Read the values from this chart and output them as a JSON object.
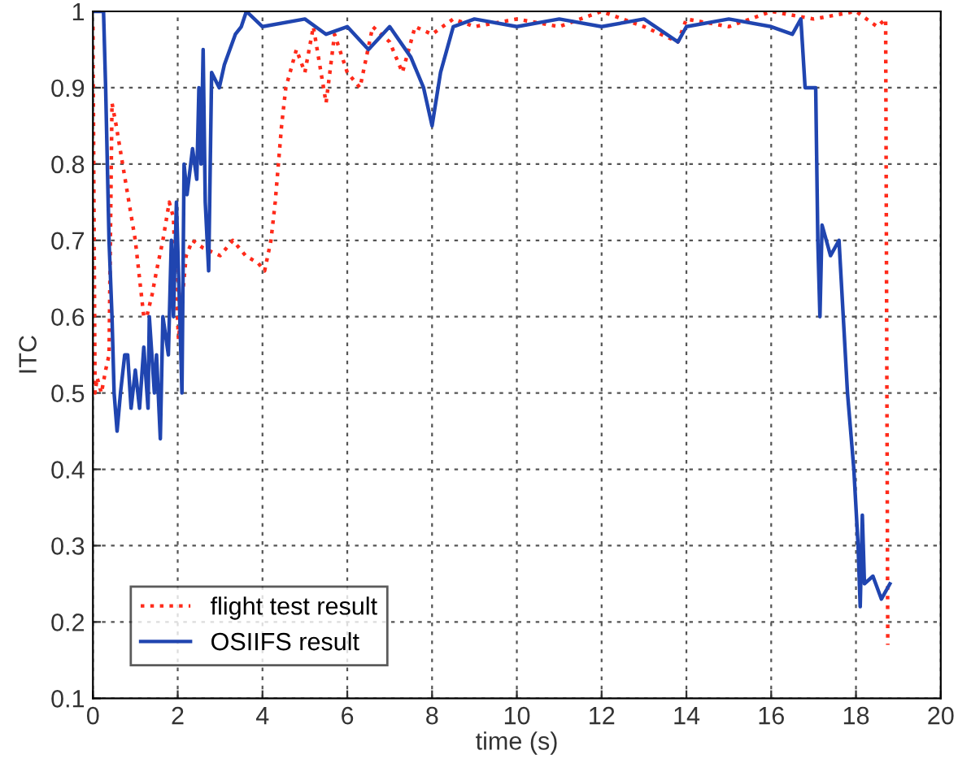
{
  "chart_data": {
    "type": "line",
    "xlabel": "time (s)",
    "ylabel": "ITC",
    "xlim": [
      0,
      20
    ],
    "ylim": [
      0.1,
      1
    ],
    "xticks": [
      0,
      2,
      4,
      6,
      8,
      10,
      12,
      14,
      16,
      18,
      20
    ],
    "yticks": [
      0.1,
      0.2,
      0.3,
      0.4,
      0.5,
      0.6,
      0.7,
      0.8,
      0.9,
      1
    ],
    "grid": true,
    "legend": "bottom left",
    "series": [
      {
        "name": "flight test result",
        "color": "#ff2a1a",
        "line_style": "dotted",
        "x": [
          0,
          0.05,
          0.1,
          0.2,
          0.3,
          0.38,
          0.45,
          0.55,
          0.7,
          0.85,
          1.0,
          1.1,
          1.2,
          1.27,
          1.4,
          1.5,
          1.65,
          1.8,
          1.9,
          1.95,
          2.02,
          2.2,
          2.35,
          2.6,
          3.0,
          3.3,
          3.6,
          3.9,
          4.05,
          4.2,
          4.3,
          4.45,
          4.55,
          4.8,
          5.0,
          5.2,
          5.5,
          5.7,
          6.0,
          6.3,
          6.6,
          7.0,
          7.3,
          7.6,
          8.0,
          8.5,
          9.0,
          10,
          11,
          12,
          13,
          13.8,
          14,
          15,
          16,
          17,
          18,
          18.5,
          18.7,
          18.75
        ],
        "values": [
          0.98,
          0.5,
          0.52,
          0.5,
          0.53,
          0.55,
          0.88,
          0.85,
          0.8,
          0.75,
          0.7,
          0.65,
          0.6,
          0.6,
          0.63,
          0.66,
          0.7,
          0.75,
          0.73,
          0.65,
          0.57,
          0.68,
          0.7,
          0.69,
          0.68,
          0.7,
          0.68,
          0.67,
          0.66,
          0.7,
          0.75,
          0.85,
          0.9,
          0.95,
          0.92,
          0.98,
          0.88,
          0.97,
          0.92,
          0.9,
          0.98,
          0.96,
          0.92,
          0.98,
          0.97,
          0.99,
          0.98,
          0.99,
          0.98,
          1.0,
          0.98,
          0.96,
          0.99,
          0.98,
          1.0,
          0.99,
          1.0,
          0.98,
          0.99,
          0.17
        ]
      },
      {
        "name": "OSIIFS result",
        "color": "#2045b0",
        "line_style": "solid",
        "x": [
          0,
          0.25,
          0.3,
          0.38,
          0.45,
          0.5,
          0.57,
          0.65,
          0.75,
          0.82,
          0.9,
          1.0,
          1.1,
          1.2,
          1.3,
          1.33,
          1.45,
          1.5,
          1.59,
          1.65,
          1.78,
          1.85,
          1.9,
          1.97,
          2.05,
          2.1,
          2.15,
          2.22,
          2.35,
          2.45,
          2.5,
          2.55,
          2.6,
          2.65,
          2.73,
          2.8,
          2.98,
          3.1,
          3.36,
          3.5,
          3.62,
          4.0,
          5.0,
          5.5,
          6.0,
          6.5,
          7.0,
          7.5,
          7.8,
          8.0,
          8.2,
          8.5,
          9.0,
          10,
          11,
          12,
          13,
          13.8,
          14,
          15,
          16,
          16.5,
          16.7,
          16.8,
          17.05,
          17.1,
          17.15,
          17.2,
          17.4,
          17.6,
          17.7,
          17.8,
          17.95,
          18.05,
          18.1,
          18.15,
          18.2,
          18.4,
          18.6,
          18.8
        ],
        "values": [
          1.0,
          1.0,
          0.9,
          0.7,
          0.6,
          0.5,
          0.45,
          0.5,
          0.55,
          0.55,
          0.48,
          0.53,
          0.48,
          0.56,
          0.48,
          0.6,
          0.5,
          0.55,
          0.44,
          0.6,
          0.55,
          0.7,
          0.6,
          0.75,
          0.6,
          0.5,
          0.8,
          0.76,
          0.82,
          0.78,
          0.9,
          0.8,
          0.95,
          0.75,
          0.66,
          0.92,
          0.9,
          0.93,
          0.97,
          0.98,
          1.0,
          0.98,
          0.99,
          0.97,
          0.98,
          0.95,
          0.98,
          0.94,
          0.9,
          0.85,
          0.92,
          0.98,
          0.99,
          0.98,
          0.99,
          0.98,
          0.99,
          0.96,
          0.98,
          0.99,
          0.98,
          0.97,
          0.99,
          0.9,
          0.9,
          0.7,
          0.6,
          0.72,
          0.68,
          0.7,
          0.6,
          0.5,
          0.4,
          0.3,
          0.22,
          0.34,
          0.25,
          0.26,
          0.23,
          0.25
        ]
      }
    ]
  }
}
